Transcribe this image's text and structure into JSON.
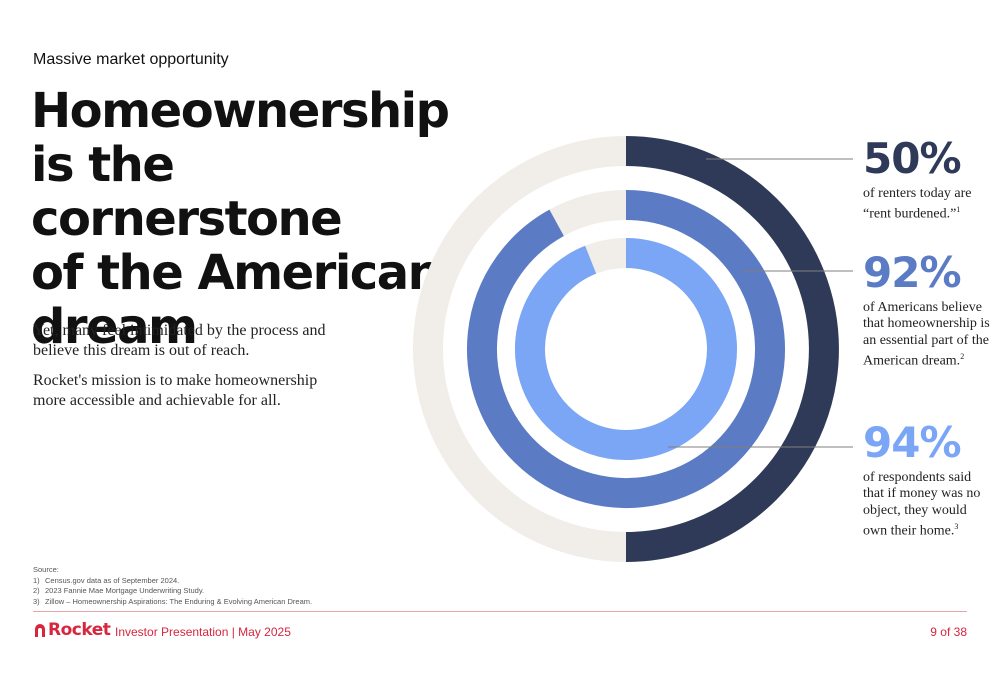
{
  "eyebrow": "Massive market opportunity",
  "headline": "Homeownership\nis the cornerstone\nof the American\ndream",
  "body": [
    "Yet, many feel intimidated by the process and believe this dream is out of reach.",
    "Rocket's mission is to make homeownership more accessible and achievable for all."
  ],
  "chart_data": {
    "type": "radial-bar",
    "unit": "%",
    "max": 100,
    "series": [
      {
        "value": 50,
        "value_label": "50%",
        "color": "#2e3a57",
        "description": "of renters today are “rent burdened.”",
        "footnote": "1"
      },
      {
        "value": 92,
        "value_label": "92%",
        "color": "#5b7bc4",
        "description": "of Americans believe that homeownership is an essential part of the American dream.",
        "footnote": "2"
      },
      {
        "value": 94,
        "value_label": "94%",
        "color": "#7aa6f5",
        "description": "of respondents said that if money was no object, they would own their home.",
        "footnote": "3"
      }
    ],
    "track_color": "#f1ede8"
  },
  "sources": {
    "title": "Source:",
    "items": [
      {
        "num": "1)",
        "text": "Census.gov data as of September 2024."
      },
      {
        "num": "2)",
        "text": "2023 Fannie Mae Mortgage Underwriting Study."
      },
      {
        "num": "3)",
        "text": "Zillow – Homeownership Aspirations: The Enduring & Evolving American Dream."
      }
    ]
  },
  "footer": {
    "brand": "Rocket",
    "title": "Investor Presentation | May 2025",
    "page": "9 of 38",
    "accent": "#d7263d"
  }
}
